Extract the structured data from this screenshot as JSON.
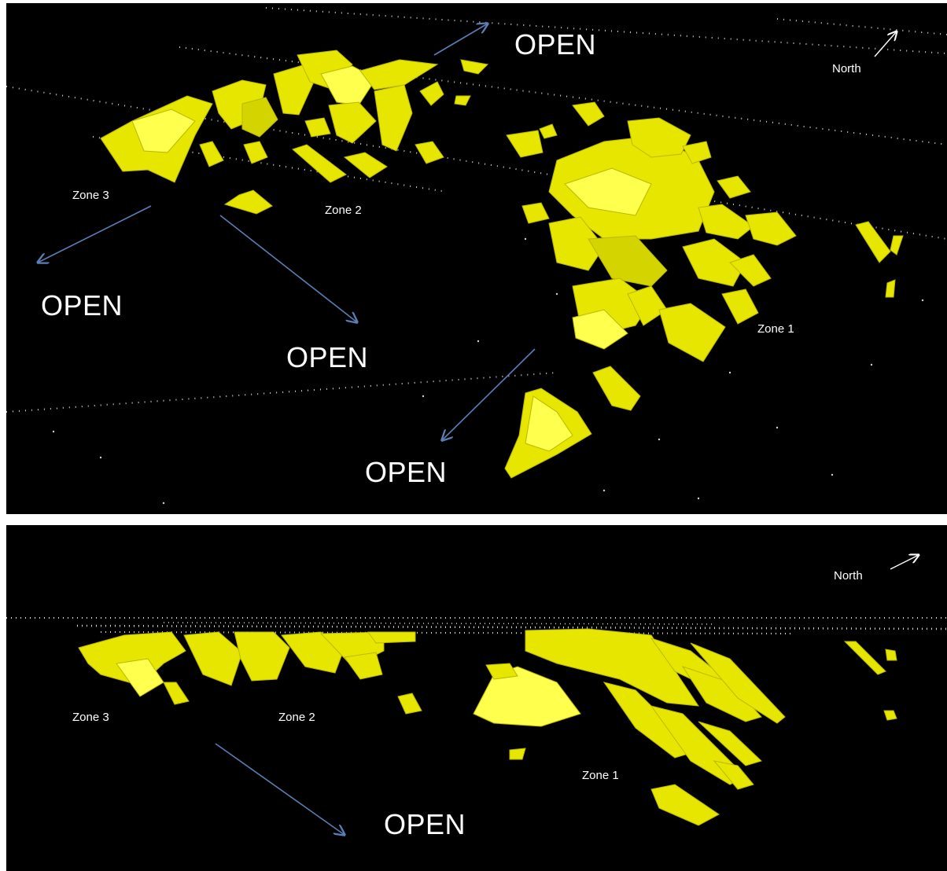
{
  "top_view": {
    "open_labels": [
      "OPEN",
      "OPEN",
      "OPEN",
      "OPEN"
    ],
    "zone_labels": [
      "Zone 3",
      "Zone 2",
      "Zone 1"
    ],
    "north_label": "North"
  },
  "bottom_view": {
    "open_labels": [
      "OPEN"
    ],
    "zone_labels": [
      "Zone 3",
      "Zone 2",
      "Zone 1"
    ],
    "north_label": "North"
  },
  "colors": {
    "orebody": "#e6e600",
    "orebody_dark": "#b8b800",
    "orebody_light": "#ffff4d",
    "arrow_open": "#5a7fb5",
    "arrow_north": "#ffffff",
    "background": "#000000",
    "drillhole_dots": "#cccccc"
  },
  "icons": {
    "open_arrow": "arrow-icon",
    "north_arrow": "north-arrow-icon"
  }
}
